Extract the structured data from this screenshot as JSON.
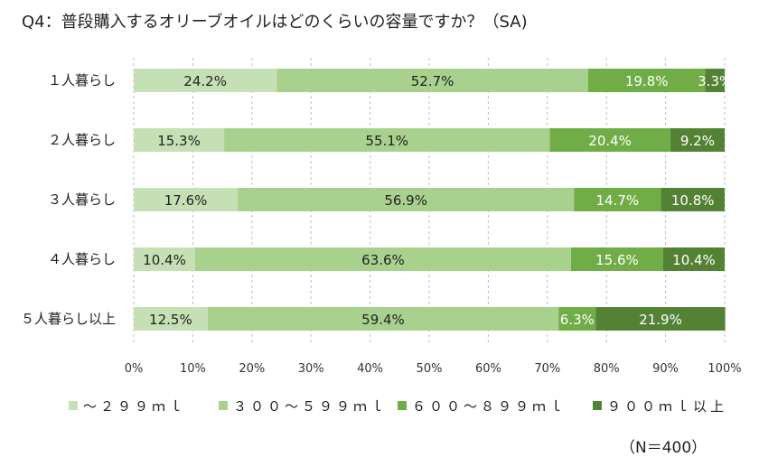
{
  "chart_data": {
    "type": "bar",
    "orientation": "horizontal",
    "stacked": "percent",
    "title": "Q4：普段購入するオリーブオイルはどのくらいの容量ですか？（SA)",
    "categories": [
      "１人暮らし",
      "２人暮らし",
      "３人暮らし",
      "４人暮らし",
      "５人暮らし以上"
    ],
    "series": [
      {
        "name": "～２９９ｍｌ",
        "color": "#c5e0b4",
        "values": [
          24.2,
          15.3,
          17.6,
          10.4,
          12.5
        ],
        "labels": [
          "24.2%",
          "15.3%",
          "17.6%",
          "10.4%",
          "12.5%"
        ]
      },
      {
        "name": "３００～５９９ｍｌ",
        "color": "#a9d18e",
        "values": [
          52.7,
          55.1,
          56.9,
          63.6,
          59.4
        ],
        "labels": [
          "52.7%",
          "55.1%",
          "56.9%",
          "63.6%",
          "59.4%"
        ]
      },
      {
        "name": "６００～８９９ｍｌ",
        "color": "#70ad47",
        "values": [
          19.8,
          20.4,
          14.7,
          15.6,
          6.3
        ],
        "labels": [
          "19.8%",
          "20.4%",
          "14.7%",
          "15.6%",
          "6.3%"
        ]
      },
      {
        "name": "９００ｍｌ以上",
        "color": "#548235",
        "values": [
          3.3,
          9.2,
          10.8,
          10.4,
          21.9
        ],
        "labels": [
          "3.3%",
          "9.2%",
          "10.8%",
          "10.4%",
          "21.9%"
        ]
      }
    ],
    "xaxis": {
      "ticks": [
        "0%",
        "10%",
        "20%",
        "30%",
        "40%",
        "50%",
        "60%",
        "70%",
        "80%",
        "90%",
        "100%"
      ],
      "range": [
        0,
        100
      ]
    },
    "grid": "vertical dashed",
    "legend": "bottom",
    "note": "（N＝400）"
  }
}
